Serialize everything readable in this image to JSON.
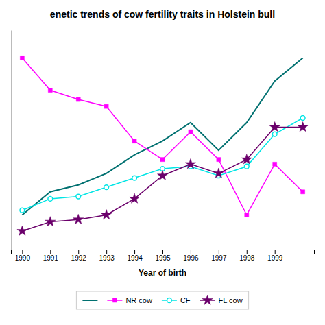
{
  "chart_data": {
    "type": "line",
    "title": "enetic trends of cow fertility traits in Holstein bull",
    "xlabel": "Year of birth",
    "x": [
      1990,
      1991,
      1992,
      1993,
      1994,
      1995,
      1996,
      1997,
      1998,
      1999,
      2000
    ],
    "series": [
      {
        "color": "#007070",
        "values": [
          0.2,
          0.3,
          0.33,
          0.38,
          0.46,
          0.52,
          0.6,
          0.48,
          0.6,
          0.78,
          0.88
        ]
      },
      {
        "name": "NR cow",
        "color": "#FF00FF",
        "marker": "square",
        "values": [
          0.88,
          0.74,
          0.7,
          0.67,
          0.52,
          0.44,
          0.56,
          0.44,
          0.2,
          0.42,
          0.3
        ]
      },
      {
        "name": "CF",
        "color": "#00E5E5",
        "marker": "circle-open",
        "values": [
          0.22,
          0.27,
          0.28,
          0.32,
          0.36,
          0.4,
          0.41,
          0.37,
          0.41,
          0.55,
          0.62
        ]
      },
      {
        "name": "FL cow",
        "color": "#6B006B",
        "marker": "star",
        "values": [
          0.13,
          0.17,
          0.18,
          0.2,
          0.27,
          0.37,
          0.42,
          0.38,
          0.44,
          0.58,
          0.58
        ]
      }
    ],
    "xlim": [
      1989.6,
      2000.4
    ],
    "xticks": [
      1990,
      1991,
      1992,
      1993,
      1994,
      1995,
      1996,
      1997,
      1998,
      1999
    ],
    "ylim": [
      0.05,
      1.0
    ],
    "tick_labels": "x",
    "grid": false,
    "legend": "bottom"
  }
}
